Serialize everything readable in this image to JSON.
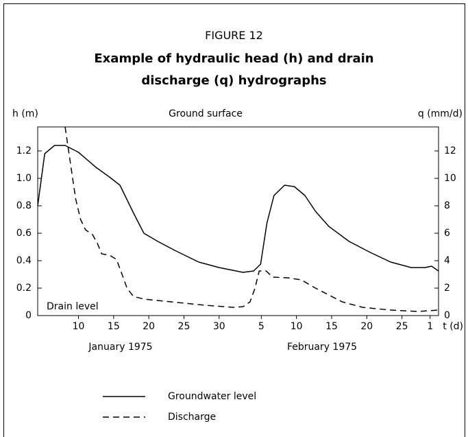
{
  "chart_data": {
    "type": "line",
    "figure_label": "FIGURE 12",
    "title": "Example of hydraulic head (h) and drain discharge (q) hydrographs",
    "y_label": "h (m)",
    "y2_label": "q (mm/d)",
    "x_label": "t (d)",
    "annotations": [
      "Ground surface",
      "Drain level"
    ],
    "month_labels": [
      "January 1975",
      "February 1975"
    ],
    "xlim": [
      4.2,
      61.2
    ],
    "xticks": [
      {
        "value": 10,
        "label": "10"
      },
      {
        "value": 15,
        "label": "15"
      },
      {
        "value": 20,
        "label": "20"
      },
      {
        "value": 25,
        "label": "25"
      },
      {
        "value": 30,
        "label": "30"
      },
      {
        "value": 36,
        "label": "5"
      },
      {
        "value": 41,
        "label": "10"
      },
      {
        "value": 46,
        "label": "15"
      },
      {
        "value": 51,
        "label": "20"
      },
      {
        "value": 56,
        "label": "25"
      },
      {
        "value": 60,
        "label": "1"
      }
    ],
    "ylim": [
      0,
      1.375
    ],
    "yticks": [
      0,
      0.2,
      0.4,
      0.6,
      0.8,
      {
        "value": 1,
        "label": "1.0"
      },
      1.2
    ],
    "y2lim": [
      0,
      13.75
    ],
    "y2ticks": [
      0,
      2,
      4,
      6,
      8,
      10,
      12
    ],
    "series": [
      {
        "name": "Groundwater level",
        "color": "#000000",
        "dash": "solid",
        "x": [
          4.2,
          5.2,
          6.6,
          8.1,
          10.0,
          12.5,
          14.4,
          15.9,
          17.8,
          19.3,
          21.3,
          23.7,
          27.1,
          30.0,
          33.4,
          34.9,
          35.9,
          36.8,
          37.8,
          39.3,
          40.7,
          42.2,
          43.7,
          45.6,
          48.5,
          51.5,
          54.4,
          57.3,
          59.3,
          60.2,
          61.2
        ],
        "values": [
          0.8,
          1.18,
          1.24,
          1.24,
          1.19,
          1.08,
          1.01,
          0.95,
          0.75,
          0.6,
          0.54,
          0.475,
          0.39,
          0.35,
          0.315,
          0.325,
          0.375,
          0.675,
          0.875,
          0.95,
          0.94,
          0.875,
          0.76,
          0.65,
          0.54,
          0.46,
          0.39,
          0.35,
          0.35,
          0.36,
          0.325
        ]
      },
      {
        "name": "Discharge",
        "color": "#000000",
        "dash": "dashed",
        "axis": "y2",
        "x": [
          8.1,
          8.6,
          9.1,
          9.6,
          10.3,
          11.0,
          12.0,
          12.7,
          13.3,
          14.4,
          15.4,
          16.2,
          16.9,
          17.8,
          19.3,
          23.2,
          28.1,
          32.0,
          33.4,
          34.4,
          35.1,
          35.7,
          36.7,
          37.6,
          39.8,
          41.7,
          43.7,
          45.6,
          47.5,
          50.4,
          54.4,
          58.3,
          61.2
        ],
        "values": [
          13.75,
          12,
          10.25,
          8.5,
          7,
          6.25,
          5.9,
          5.25,
          4.5,
          4.4,
          4.1,
          3,
          2,
          1.4,
          1.2,
          1.0,
          0.75,
          0.6,
          0.65,
          1.0,
          2,
          3.25,
          3.25,
          2.8,
          2.75,
          2.6,
          2,
          1.5,
          1.0,
          0.6,
          0.4,
          0.3,
          0.4
        ]
      }
    ]
  }
}
